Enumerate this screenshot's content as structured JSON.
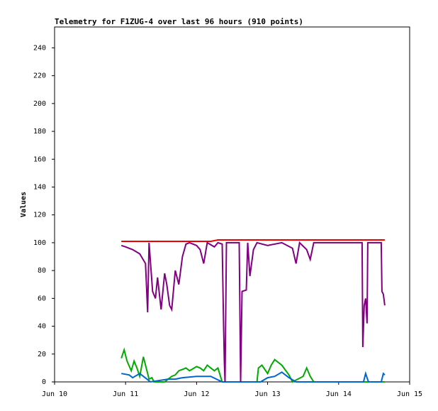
{
  "chart_data": {
    "type": "line",
    "title": "Telemetry for F1ZUG-4 over last 96 hours (910 points)",
    "y_label": "Values",
    "xlim": [
      0,
      5
    ],
    "xticks": [
      {
        "value": 0,
        "label": "Jun 10"
      },
      {
        "value": 1,
        "label": "Jun 11"
      },
      {
        "value": 2,
        "label": "Jun 12"
      },
      {
        "value": 3,
        "label": "Jun 13"
      },
      {
        "value": 4,
        "label": "Jun 14"
      },
      {
        "value": 5,
        "label": "Jun 15"
      }
    ],
    "ylim": [
      0,
      255
    ],
    "yticks": [
      0,
      20,
      40,
      60,
      80,
      100,
      120,
      140,
      160,
      180,
      200,
      220,
      240
    ],
    "series": [
      {
        "color": "#00aa00",
        "x": [
          0.94,
          0.98,
          1.02,
          1.08,
          1.12,
          1.16,
          1.2,
          1.25,
          1.3,
          1.33,
          1.37,
          1.4,
          1.55,
          1.6,
          1.65,
          1.7,
          1.75,
          1.8,
          1.85,
          1.9,
          2.0,
          2.05,
          2.1,
          2.15,
          2.2,
          2.25,
          2.3,
          2.36,
          2.85,
          2.87,
          2.92,
          3.0,
          3.05,
          3.1,
          3.2,
          3.3,
          3.35,
          3.5,
          3.55,
          3.6,
          3.65,
          4.65
        ],
        "values": [
          17,
          23,
          15,
          8,
          15,
          10,
          4,
          18,
          8,
          2,
          3,
          0,
          0,
          2,
          4,
          5,
          8,
          9,
          10,
          8,
          11,
          10,
          8,
          12,
          10,
          8,
          10,
          0,
          0,
          10,
          12,
          6,
          12,
          16,
          12,
          5,
          0,
          4,
          10,
          4,
          0,
          0
        ]
      },
      {
        "color": "#0066cc",
        "x": [
          0.94,
          1.05,
          1.1,
          1.2,
          1.3,
          1.35,
          1.6,
          1.7,
          1.8,
          2.0,
          2.2,
          2.36,
          2.9,
          3.0,
          3.1,
          3.2,
          3.3,
          3.4,
          4.35,
          4.38,
          4.42,
          4.6,
          4.63,
          4.65
        ],
        "values": [
          6,
          5,
          3,
          6,
          2,
          0,
          2,
          2,
          3,
          4,
          4,
          0,
          0,
          3,
          4,
          7,
          3,
          0,
          0,
          6,
          0,
          0,
          6,
          5
        ]
      },
      {
        "color": "#ee0000",
        "x": [
          0.94,
          1.5,
          2.2,
          2.3,
          4.65
        ],
        "values": [
          101,
          101,
          101,
          102,
          102
        ]
      },
      {
        "color": "#800080",
        "x": [
          0.94,
          1.0,
          1.1,
          1.2,
          1.28,
          1.31,
          1.33,
          1.38,
          1.42,
          1.45,
          1.5,
          1.55,
          1.58,
          1.62,
          1.65,
          1.7,
          1.75,
          1.8,
          1.85,
          1.9,
          2.0,
          2.05,
          2.1,
          2.15,
          2.25,
          2.3,
          2.36,
          2.38,
          2.39,
          2.4,
          2.42,
          2.6,
          2.62,
          2.64,
          2.7,
          2.72,
          2.75,
          2.8,
          2.85,
          3.0,
          3.2,
          3.35,
          3.4,
          3.45,
          3.55,
          3.6,
          3.65,
          4.33,
          4.34,
          4.36,
          4.38,
          4.4,
          4.41,
          4.6,
          4.61,
          4.63,
          4.65
        ],
        "values": [
          98,
          97,
          95,
          92,
          85,
          50,
          100,
          65,
          60,
          75,
          52,
          78,
          70,
          55,
          52,
          80,
          70,
          90,
          99,
          100,
          98,
          95,
          85,
          100,
          97,
          100,
          99,
          40,
          15,
          0,
          100,
          100,
          0,
          65,
          66,
          100,
          76,
          95,
          100,
          98,
          100,
          96,
          85,
          100,
          95,
          88,
          100,
          100,
          25,
          55,
          60,
          42,
          100,
          100,
          65,
          63,
          55
        ]
      }
    ]
  }
}
